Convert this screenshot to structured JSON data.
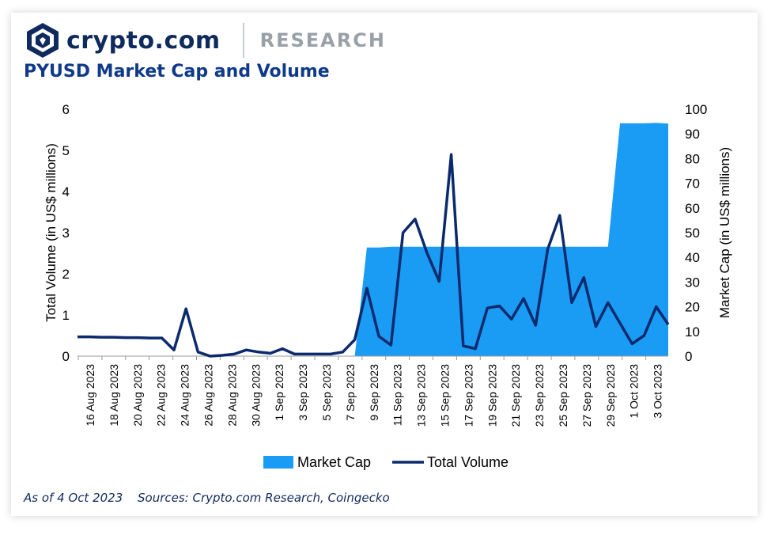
{
  "header": {
    "brand": "crypto.com",
    "section": "RESEARCH",
    "title": "PYUSD Market Cap and Volume"
  },
  "footer": {
    "as_of": "As of 4 Oct 2023",
    "sources": "Sources: Crypto.com Research, Coingecko"
  },
  "colors": {
    "market_cap": "#1a9cf4",
    "volume": "#0b2a6e",
    "title": "#0f3a8a"
  },
  "chart_data": {
    "type": "area",
    "ylabel_left": "Total Volume (in US$ millions)",
    "ylabel_right": "Market Cap (in US$ millions)",
    "ylim_left": [
      0,
      6
    ],
    "ylim_right": [
      0,
      100
    ],
    "yticks_left": [
      "0",
      "1",
      "2",
      "3",
      "4",
      "5",
      "6"
    ],
    "yticks_right": [
      "0",
      "10",
      "20",
      "30",
      "40",
      "50",
      "60",
      "70",
      "80",
      "90",
      "100"
    ],
    "x_tick_labels": [
      "16 Aug 2023",
      "18 Aug 2023",
      "20 Aug 2023",
      "22 Aug 2023",
      "24 Aug 2023",
      "26 Aug 2023",
      "28 Aug 2023",
      "30 Aug 2023",
      "1 Sep 2023",
      "3 Sep 2023",
      "5 Sep 2023",
      "7 Sep 2023",
      "9 Sep 2023",
      "11 Sep 2023",
      "13 Sep 2023",
      "15 Sep 2023",
      "17 Sep 2023",
      "19 Sep 2023",
      "21 Sep 2023",
      "23 Sep 2023",
      "25 Sep 2023",
      "27 Sep 2023",
      "29 Sep 2023",
      "1 Oct 2023",
      "3 Oct 2023"
    ],
    "grid": false,
    "legend_position": "bottom",
    "series": [
      {
        "name": "Market Cap",
        "type": "area",
        "axis": "right",
        "dates": [
          "8 Sep 2023",
          "9 Sep 2023",
          "10 Sep 2023",
          "11 Sep 2023",
          "12 Sep 2023",
          "13 Sep 2023",
          "14 Sep 2023",
          "15 Sep 2023",
          "16 Sep 2023",
          "17 Sep 2023",
          "18 Sep 2023",
          "19 Sep 2023",
          "20 Sep 2023",
          "21 Sep 2023",
          "22 Sep 2023",
          "23 Sep 2023",
          "24 Sep 2023",
          "25 Sep 2023",
          "26 Sep 2023",
          "27 Sep 2023",
          "28 Sep 2023",
          "29 Sep 2023",
          "30 Sep 2023",
          "1 Oct 2023",
          "2 Oct 2023",
          "3 Oct 2023",
          "4 Oct 2023"
        ],
        "values": [
          0,
          44,
          44,
          44.3,
          44.3,
          44.3,
          44.3,
          44.3,
          44.3,
          44.3,
          44.3,
          44.3,
          44.3,
          44.3,
          44.3,
          44.3,
          44.3,
          44.3,
          44.3,
          44.3,
          44.3,
          44.3,
          94.3,
          94.3,
          94.3,
          94.5,
          94.2
        ]
      },
      {
        "name": "Total Volume",
        "type": "line",
        "axis": "left",
        "dates": [
          "16 Aug 2023",
          "17 Aug 2023",
          "18 Aug 2023",
          "19 Aug 2023",
          "20 Aug 2023",
          "21 Aug 2023",
          "22 Aug 2023",
          "23 Aug 2023",
          "24 Aug 2023",
          "25 Aug 2023",
          "26 Aug 2023",
          "27 Aug 2023",
          "28 Aug 2023",
          "29 Aug 2023",
          "30 Aug 2023",
          "31 Aug 2023",
          "1 Sep 2023",
          "2 Sep 2023",
          "3 Sep 2023",
          "4 Sep 2023",
          "5 Sep 2023",
          "6 Sep 2023",
          "7 Sep 2023",
          "8 Sep 2023",
          "9 Sep 2023",
          "10 Sep 2023",
          "11 Sep 2023",
          "12 Sep 2023",
          "13 Sep 2023",
          "14 Sep 2023",
          "15 Sep 2023",
          "16 Sep 2023",
          "17 Sep 2023",
          "18 Sep 2023",
          "19 Sep 2023",
          "20 Sep 2023",
          "21 Sep 2023",
          "22 Sep 2023",
          "23 Sep 2023",
          "24 Sep 2023",
          "25 Sep 2023",
          "26 Sep 2023",
          "27 Sep 2023",
          "28 Sep 2023",
          "29 Sep 2023",
          "30 Sep 2023",
          "1 Oct 2023",
          "2 Oct 2023",
          "3 Oct 2023",
          "4 Oct 2023"
        ],
        "values": [
          0.47,
          0.47,
          0.46,
          0.46,
          0.45,
          0.45,
          0.44,
          0.44,
          0.15,
          1.15,
          0.1,
          0.0,
          0.02,
          0.05,
          0.15,
          0.1,
          0.07,
          0.18,
          0.05,
          0.05,
          0.05,
          0.05,
          0.1,
          0.4,
          1.65,
          0.48,
          0.27,
          3.0,
          3.33,
          2.5,
          1.82,
          4.9,
          0.25,
          0.18,
          1.17,
          1.22,
          0.9,
          1.4,
          0.75,
          2.6,
          3.42,
          1.3,
          1.91,
          0.72,
          1.3,
          0.8,
          0.3,
          0.5,
          1.2,
          0.77
        ]
      }
    ]
  }
}
